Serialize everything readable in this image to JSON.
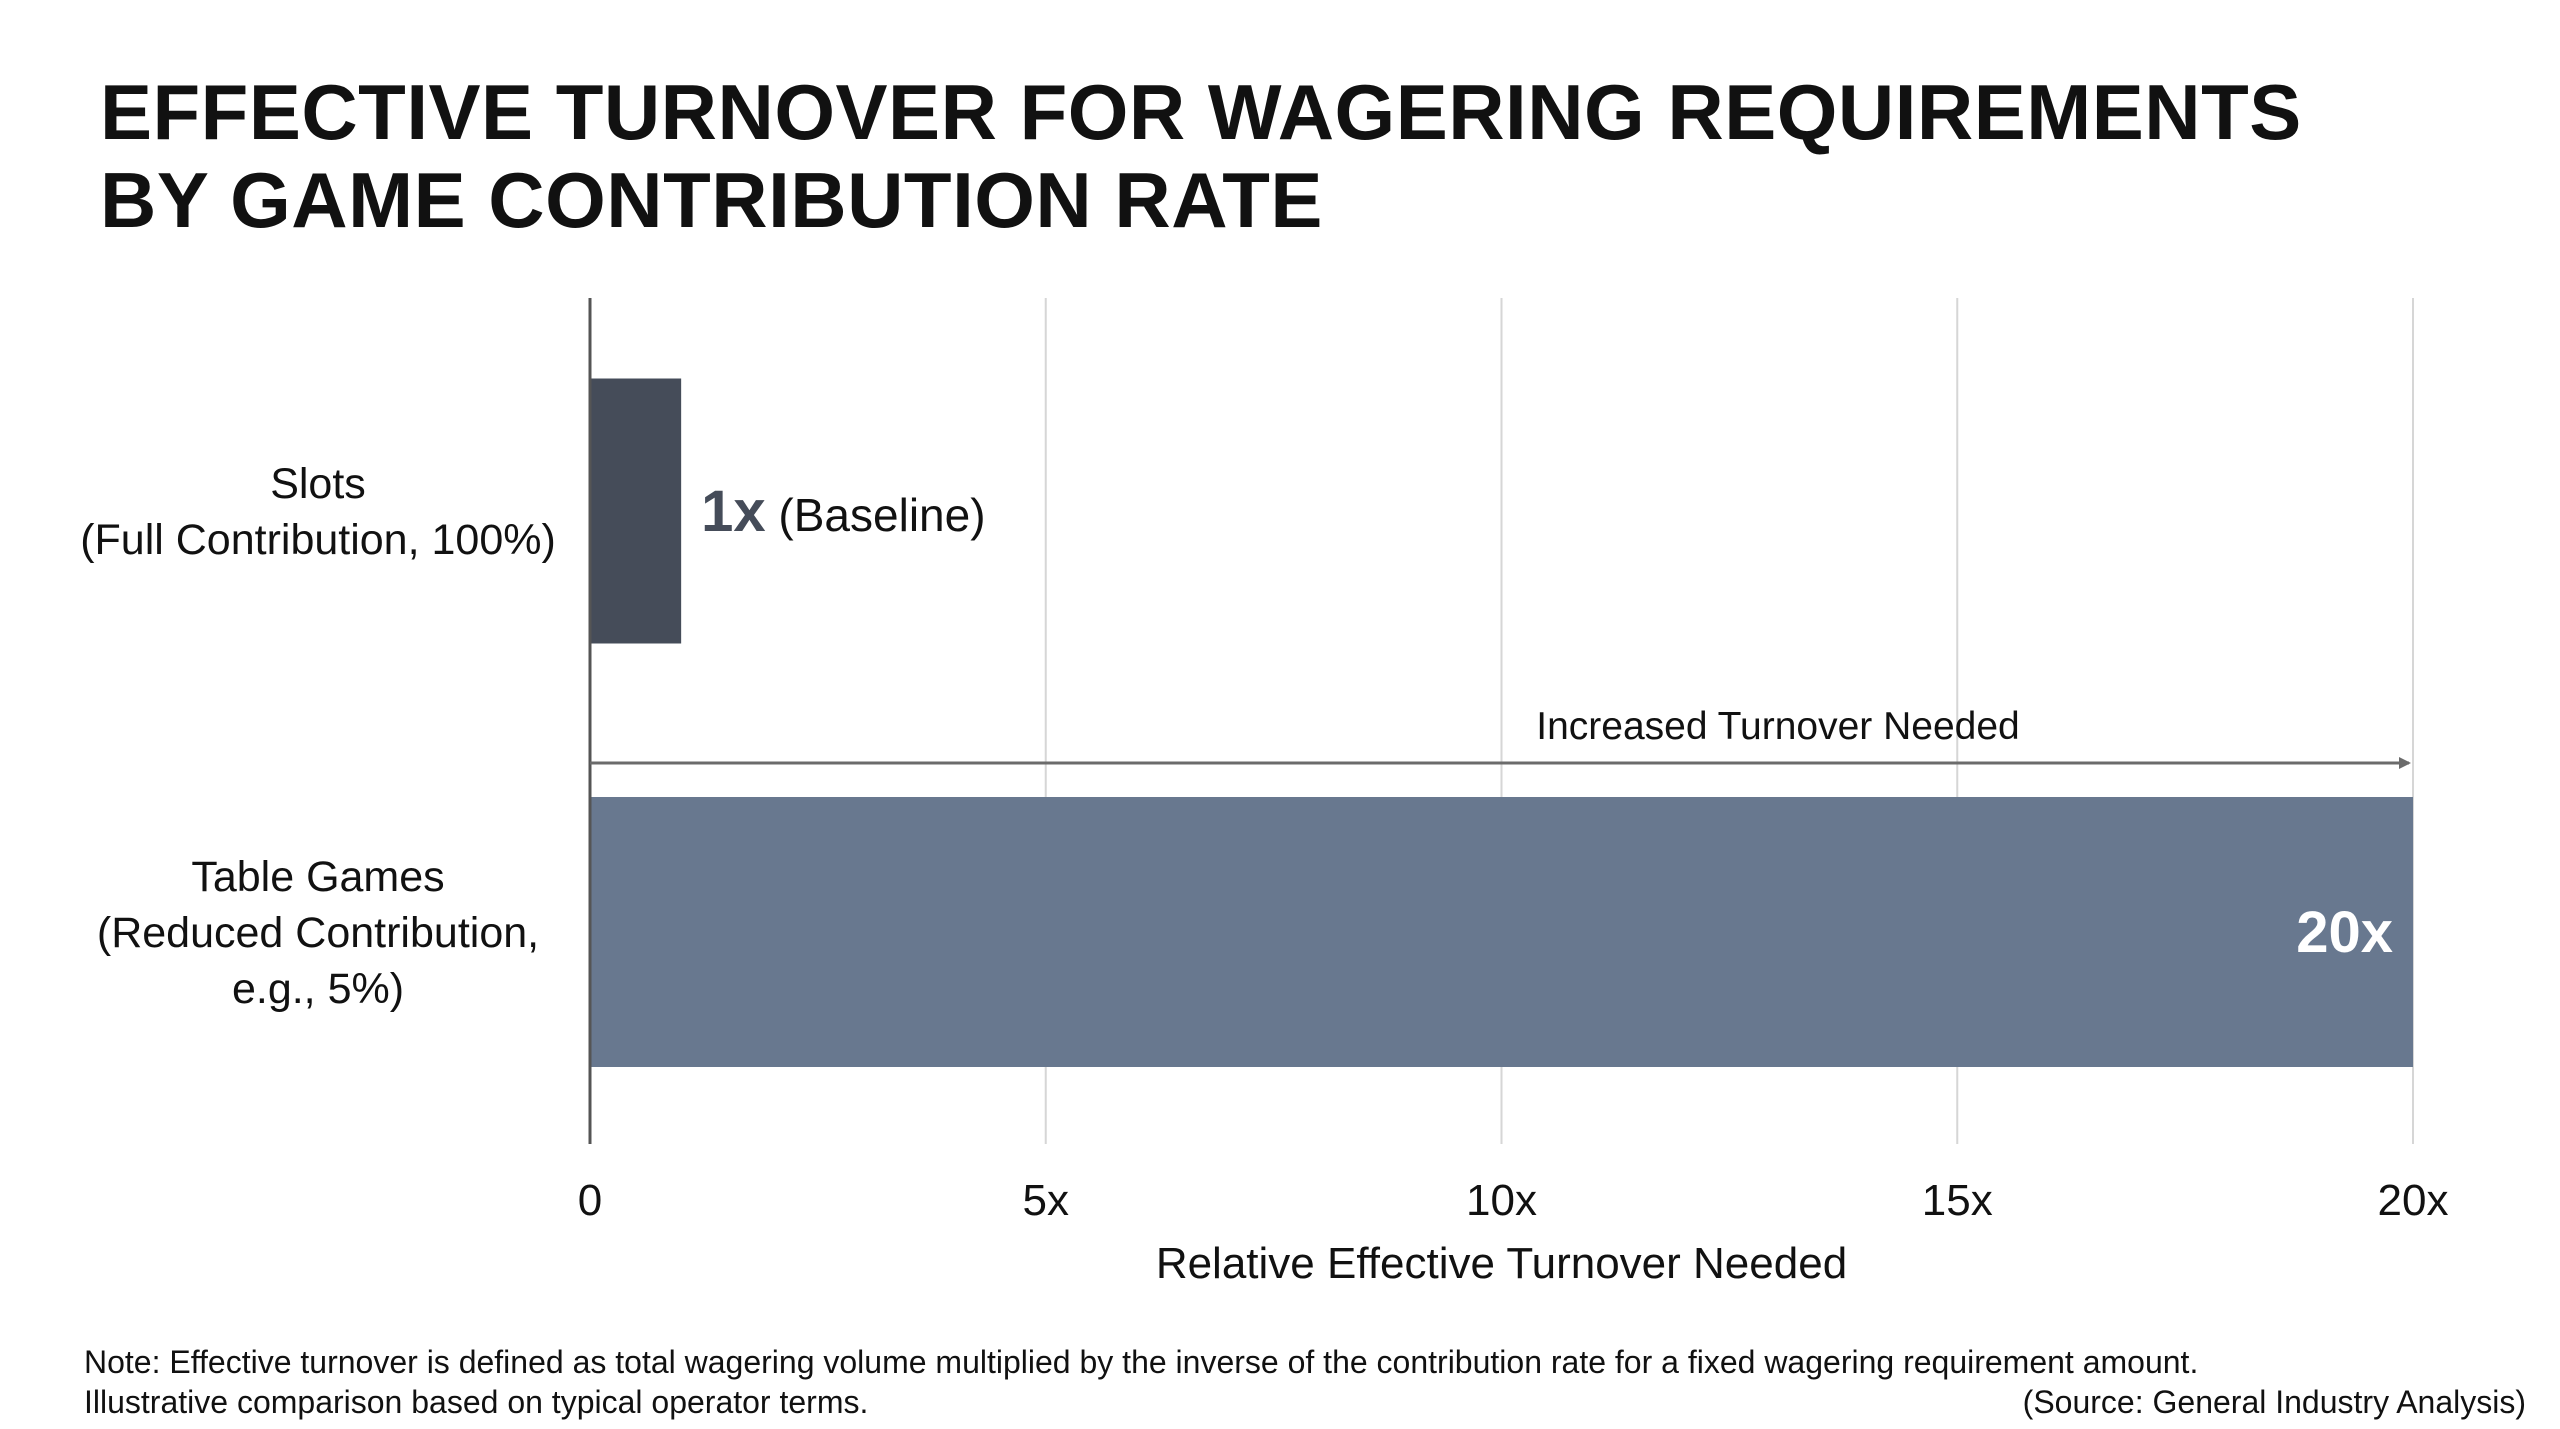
{
  "title": {
    "line1": "EFFECTIVE TURNOVER FOR WAGERING REQUIREMENTS",
    "line2": "BY GAME CONTRIBUTION RATE"
  },
  "chart_data": {
    "type": "bar",
    "orientation": "horizontal",
    "categories": [
      [
        "Slots",
        "(Full Contribution, 100%)"
      ],
      [
        "Table Games",
        "(Reduced Contribution,",
        "e.g., 5%)"
      ]
    ],
    "values": [
      1,
      20
    ],
    "data_labels": [
      {
        "value": "1x",
        "suffix": " (Baseline)"
      },
      {
        "value": "20x",
        "suffix": ""
      }
    ],
    "bar_colors": [
      "#454c59",
      "#68788f"
    ],
    "xlabel": "Relative Effective Turnover Needed",
    "xlim": [
      0,
      20
    ],
    "ticks": [
      {
        "value": 0,
        "label": "0"
      },
      {
        "value": 5,
        "label": "5x"
      },
      {
        "value": 10,
        "label": "10x"
      },
      {
        "value": 15,
        "label": "15x"
      },
      {
        "value": 20,
        "label": "20x"
      }
    ],
    "grid": true,
    "annotation": {
      "text": "Increased Turnover Needed",
      "from": 0,
      "to": 20
    }
  },
  "footer": {
    "note_line1": "Note: Effective turnover is defined as total wagering volume multiplied by the inverse of the contribution rate for a fixed wagering requirement amount.",
    "note_line2": "Illustrative comparison based on typical operator terms.",
    "source": "(Source: General Industry Analysis)"
  }
}
